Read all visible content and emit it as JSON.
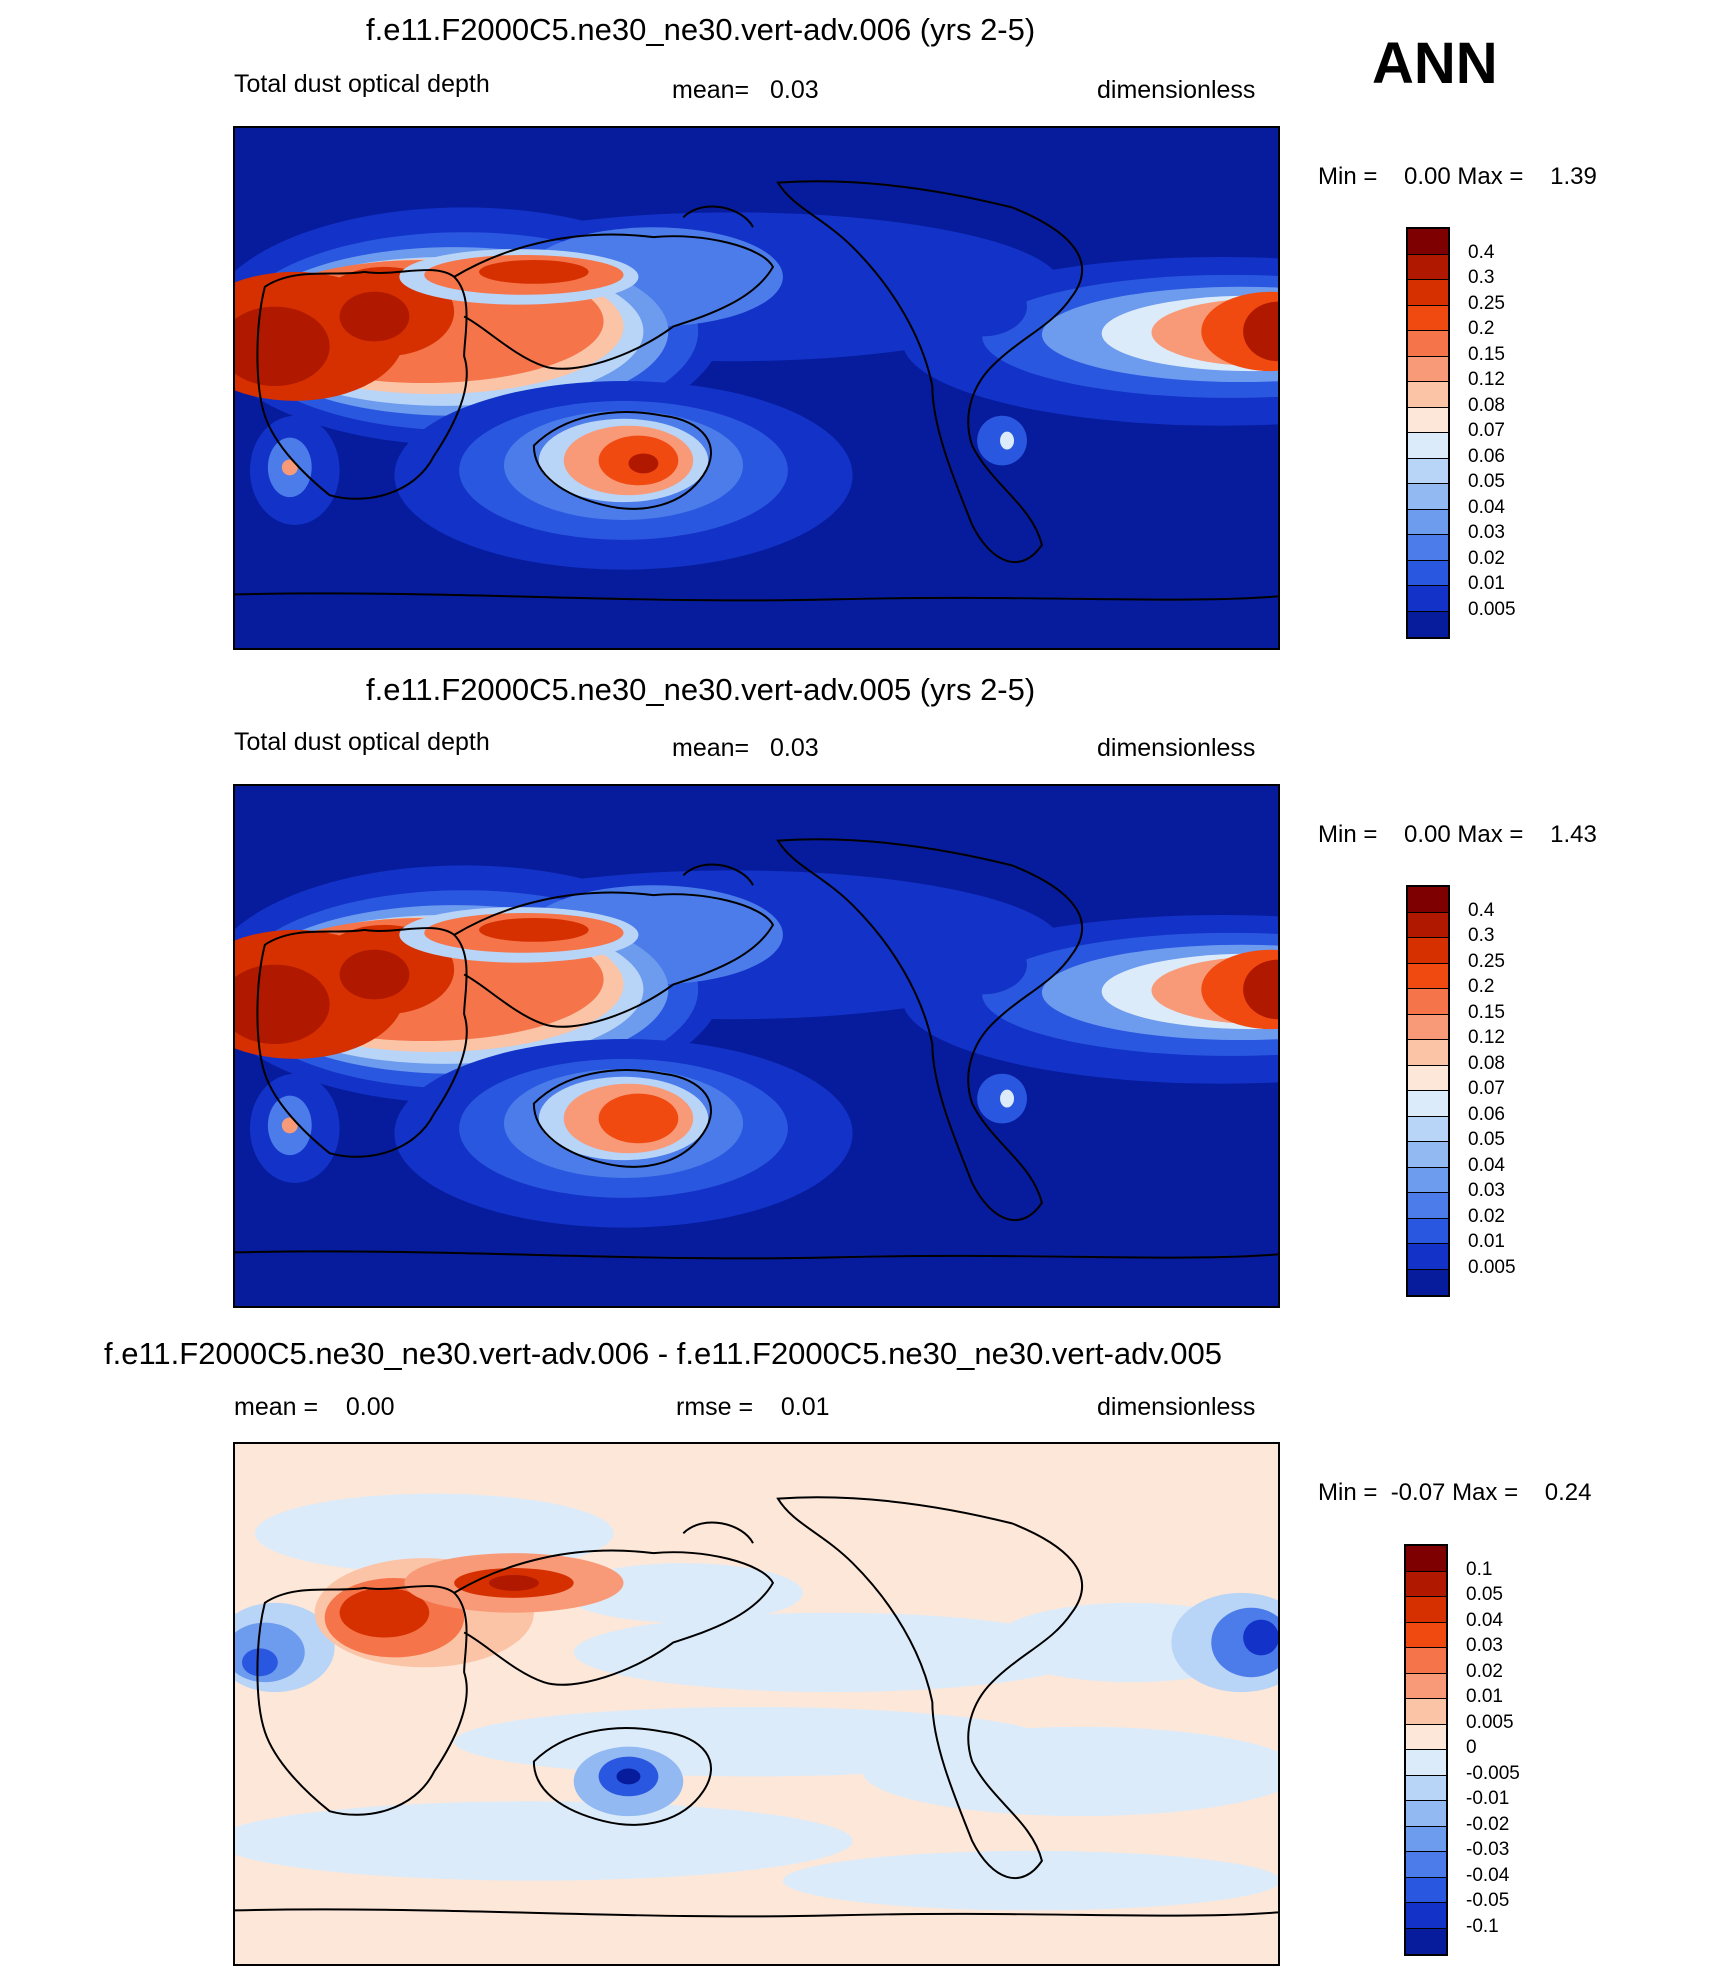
{
  "season": "ANN",
  "panels": [
    {
      "title": "f.e11.F2000C5.ne30_ne30.vert-adv.006 (yrs 2-5)",
      "left": "Total dust optical depth",
      "center": "mean=   0.03",
      "right": "dimensionless",
      "minmax": "Min =    0.00 Max =    1.39",
      "kind": "abs",
      "levels": [
        "0.4",
        "0.3",
        "0.25",
        "0.2",
        "0.15",
        "0.12",
        "0.08",
        "0.07",
        "0.06",
        "0.05",
        "0.04",
        "0.03",
        "0.02",
        "0.01",
        "0.005"
      ],
      "colors": [
        "#7f0000",
        "#b01800",
        "#d63000",
        "#f04a10",
        "#f5744a",
        "#f89a78",
        "#fbc4a6",
        "#fde7d8",
        "#dcebfa",
        "#b8d4f6",
        "#93b9f2",
        "#6d9bee",
        "#4b7cea",
        "#2a57e0",
        "#1232c8",
        "#071c9c"
      ]
    },
    {
      "title": "f.e11.F2000C5.ne30_ne30.vert-adv.005 (yrs 2-5)",
      "left": "Total dust optical depth",
      "center": "mean=   0.03",
      "right": "dimensionless",
      "minmax": "Min =    0.00 Max =    1.43",
      "kind": "abs",
      "levels": [
        "0.4",
        "0.3",
        "0.25",
        "0.2",
        "0.15",
        "0.12",
        "0.08",
        "0.07",
        "0.06",
        "0.05",
        "0.04",
        "0.03",
        "0.02",
        "0.01",
        "0.005"
      ],
      "colors": [
        "#7f0000",
        "#b01800",
        "#d63000",
        "#f04a10",
        "#f5744a",
        "#f89a78",
        "#fbc4a6",
        "#fde7d8",
        "#dcebfa",
        "#b8d4f6",
        "#93b9f2",
        "#6d9bee",
        "#4b7cea",
        "#2a57e0",
        "#1232c8",
        "#071c9c"
      ]
    },
    {
      "title": "f.e11.F2000C5.ne30_ne30.vert-adv.006 - f.e11.F2000C5.ne30_ne30.vert-adv.005",
      "left": "mean =    0.00",
      "center": "rmse =    0.01",
      "right": "dimensionless",
      "minmax": "Min =  -0.07 Max =    0.24",
      "kind": "diff",
      "levels": [
        "0.1",
        "0.05",
        "0.04",
        "0.03",
        "0.02",
        "0.01",
        "0.005",
        "0",
        "-0.005",
        "-0.01",
        "-0.02",
        "-0.03",
        "-0.04",
        "-0.05",
        "-0.1"
      ],
      "colors": [
        "#7f0000",
        "#b01800",
        "#d63000",
        "#f04a10",
        "#f5744a",
        "#f89a78",
        "#fbc4a6",
        "#fde7d8",
        "#dcebfa",
        "#b8d4f6",
        "#93b9f2",
        "#6d9bee",
        "#4b7cea",
        "#2a57e0",
        "#1232c8",
        "#071c9c"
      ]
    }
  ],
  "chart_data": [
    {
      "type": "heatmap",
      "title": "f.e11.F2000C5.ne30_ne30.vert-adv.006 (yrs 2-5)",
      "variable": "Total dust optical depth",
      "units": "dimensionless",
      "mean": 0.03,
      "min": 0.0,
      "max": 1.39,
      "contour_levels": [
        0.005,
        0.01,
        0.02,
        0.03,
        0.04,
        0.05,
        0.06,
        0.07,
        0.08,
        0.12,
        0.15,
        0.2,
        0.25,
        0.3,
        0.4
      ]
    },
    {
      "type": "heatmap",
      "title": "f.e11.F2000C5.ne30_ne30.vert-adv.005 (yrs 2-5)",
      "variable": "Total dust optical depth",
      "units": "dimensionless",
      "mean": 0.03,
      "min": 0.0,
      "max": 1.43,
      "contour_levels": [
        0.005,
        0.01,
        0.02,
        0.03,
        0.04,
        0.05,
        0.06,
        0.07,
        0.08,
        0.12,
        0.15,
        0.2,
        0.25,
        0.3,
        0.4
      ]
    },
    {
      "type": "heatmap",
      "title": "f.e11.F2000C5.ne30_ne30.vert-adv.006 - f.e11.F2000C5.ne30_ne30.vert-adv.005",
      "units": "dimensionless",
      "mean": 0.0,
      "rmse": 0.01,
      "min": -0.07,
      "max": 0.24,
      "contour_levels": [
        -0.1,
        -0.05,
        -0.04,
        -0.03,
        -0.02,
        -0.01,
        -0.005,
        0,
        0.005,
        0.01,
        0.02,
        0.03,
        0.04,
        0.05,
        0.1
      ]
    }
  ]
}
